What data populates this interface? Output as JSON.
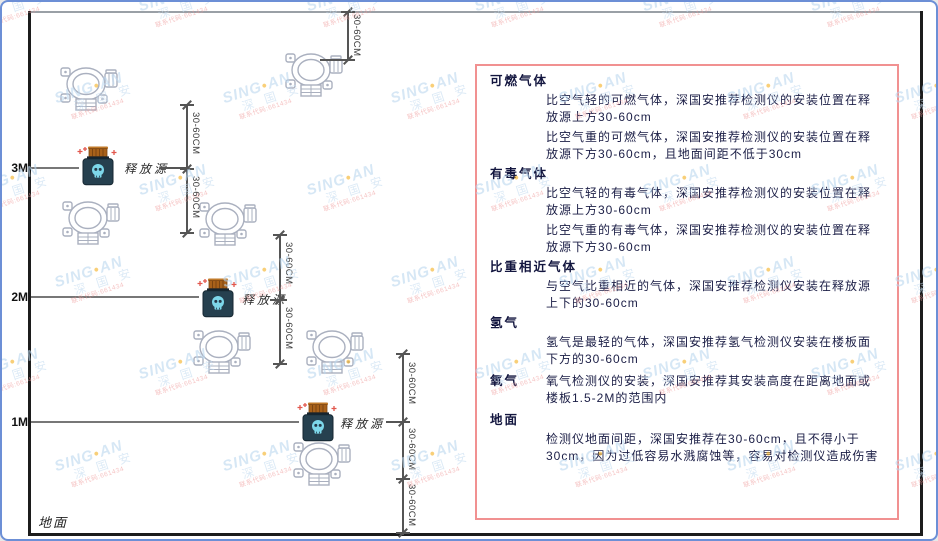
{
  "watermark": {
    "brand_prefix": "SING",
    "brand_suffix": "AN",
    "cn": "深 国 安",
    "code": "联系代码:661434"
  },
  "diagram": {
    "axis_labels": [
      "3M",
      "2M",
      "1M"
    ],
    "ground_label": "地面",
    "release_source_label": "释放源",
    "dimension_label": "30-60CM"
  },
  "panel": {
    "sections": [
      {
        "heading": "可燃气体",
        "paragraphs": [
          "比空气轻的可燃气体，深国安推荐检测仪的安装位置在释放源上方30-60cm",
          "比空气重的可燃气体，深国安推荐检测仪的安装位置在释放源下方30-60cm，且地面间距不低于30cm"
        ]
      },
      {
        "heading": "有毒气体",
        "paragraphs": [
          "比空气轻的有毒气体，深国安推荐检测仪的安装位置在释放源上方30-60cm",
          "比空气重的有毒气体，深国安推荐检测仪的安装位置在释放源下方30-60cm"
        ]
      },
      {
        "heading": "比重相近气体",
        "paragraphs": [
          "与空气比重相近的气体，深国安推荐检测仪安装在释放源上下的30-60cm"
        ]
      },
      {
        "heading": "氢气",
        "paragraphs": [
          "氢气是最轻的气体，深国安推荐氢气检测仪安装在楼板面下方的30-60cm"
        ]
      },
      {
        "heading": "氧气",
        "paragraphs": [
          "氧气检测仪的安装，深国安推荐其安装高度在距离地面或楼板1.5-2M的范围内"
        ]
      },
      {
        "heading": "地面",
        "paragraphs": [
          "检测仪地面间距，深国安推荐在30-60cm，且不得小于30cm，因为过低容易水溅腐蚀等，容易对检测仪造成伤害"
        ]
      }
    ]
  }
}
